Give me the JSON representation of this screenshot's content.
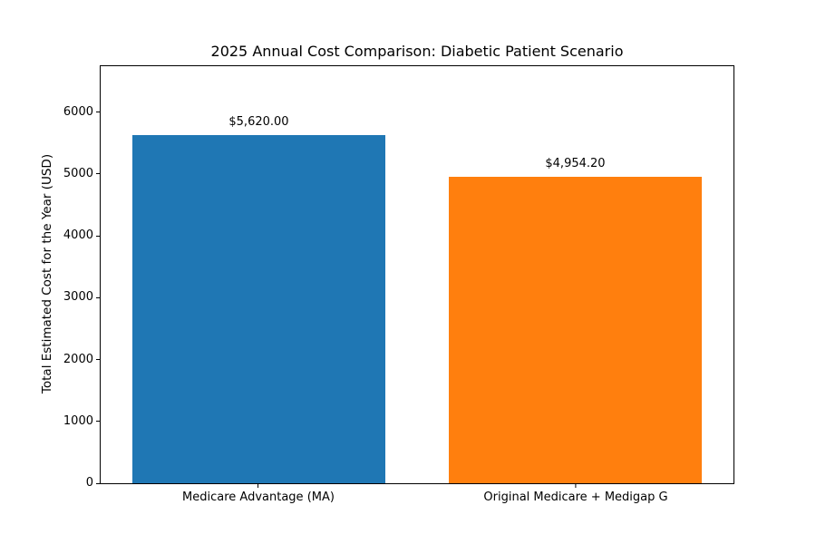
{
  "chart_data": {
    "type": "bar",
    "title": "2025 Annual Cost Comparison: Diabetic Patient Scenario",
    "ylabel": "Total Estimated Cost for the Year (USD)",
    "xlabel": "",
    "categories": [
      "Medicare Advantage (MA)",
      "Original Medicare + Medigap G"
    ],
    "values": [
      5620.0,
      4954.2
    ],
    "value_labels": [
      "$5,620.00",
      "$4,954.20"
    ],
    "bar_colors": [
      "#1f77b4",
      "#ff7f0e"
    ],
    "yticks": [
      0,
      1000,
      2000,
      3000,
      4000,
      5000,
      6000
    ],
    "ylim": [
      0,
      6740
    ],
    "grid": false,
    "legend_position": "none",
    "background_color": "#ffffff",
    "axis_color": "#000000"
  }
}
